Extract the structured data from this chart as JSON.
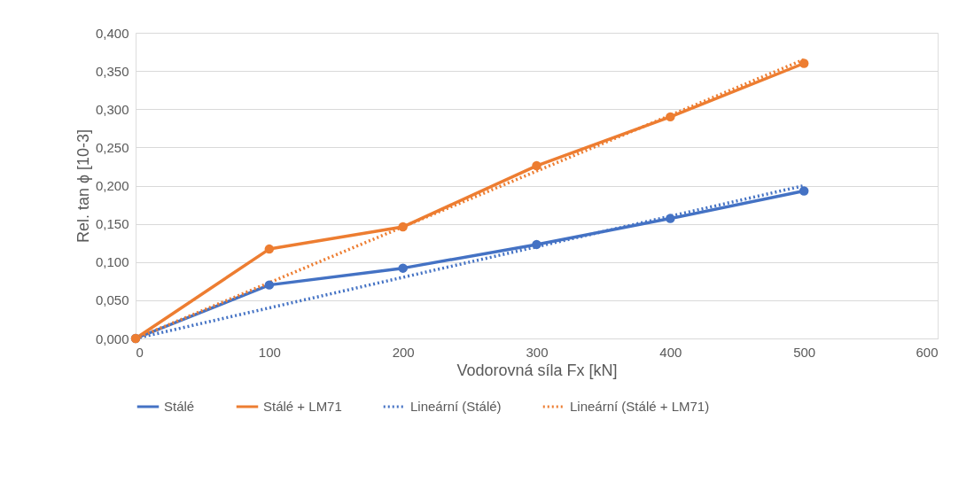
{
  "chart_data": {
    "type": "line",
    "xlabel": "Vodorovná síla Fx [kN]",
    "ylabel": "Rel. tan ϕ [10-3]",
    "xlim": [
      0,
      600
    ],
    "xticks": [
      0,
      100,
      200,
      300,
      400,
      500,
      600
    ],
    "ylim": [
      0,
      0.4
    ],
    "yticks": [
      {
        "value": 0,
        "label": "0,000"
      },
      {
        "value": 0.05,
        "label": "0,050"
      },
      {
        "value": 0.1,
        "label": "0,100"
      },
      {
        "value": 0.15,
        "label": "0,150"
      },
      {
        "value": 0.2,
        "label": "0,200"
      },
      {
        "value": 0.25,
        "label": "0,250"
      },
      {
        "value": 0.3,
        "label": "0,300"
      },
      {
        "value": 0.35,
        "label": "0,350"
      },
      {
        "value": 0.4,
        "label": "0,400"
      }
    ],
    "grid": "y",
    "legend": "bottom",
    "series": [
      {
        "name": "Stálé",
        "color": "#4472c4",
        "x": [
          0,
          100,
          200,
          300,
          400,
          500
        ],
        "values": [
          0,
          0.07,
          0.092,
          0.123,
          0.157,
          0.193
        ],
        "marker": "circle",
        "line_style": "solid"
      },
      {
        "name": "Stálé + LM71",
        "color": "#ed7d31",
        "x": [
          0,
          100,
          200,
          300,
          400,
          500
        ],
        "values": [
          0,
          0.117,
          0.146,
          0.226,
          0.29,
          0.36
        ],
        "marker": "circle",
        "line_style": "solid"
      },
      {
        "name": "Lineární (Stálé)",
        "color": "#4472c4",
        "x": [
          0,
          500
        ],
        "values": [
          0,
          0.2
        ],
        "marker": "none",
        "line_style": "dotted"
      },
      {
        "name": "Lineární (Stálé + LM71)",
        "color": "#ed7d31",
        "x": [
          0,
          500
        ],
        "values": [
          0,
          0.365
        ],
        "marker": "none",
        "line_style": "dotted"
      }
    ]
  }
}
